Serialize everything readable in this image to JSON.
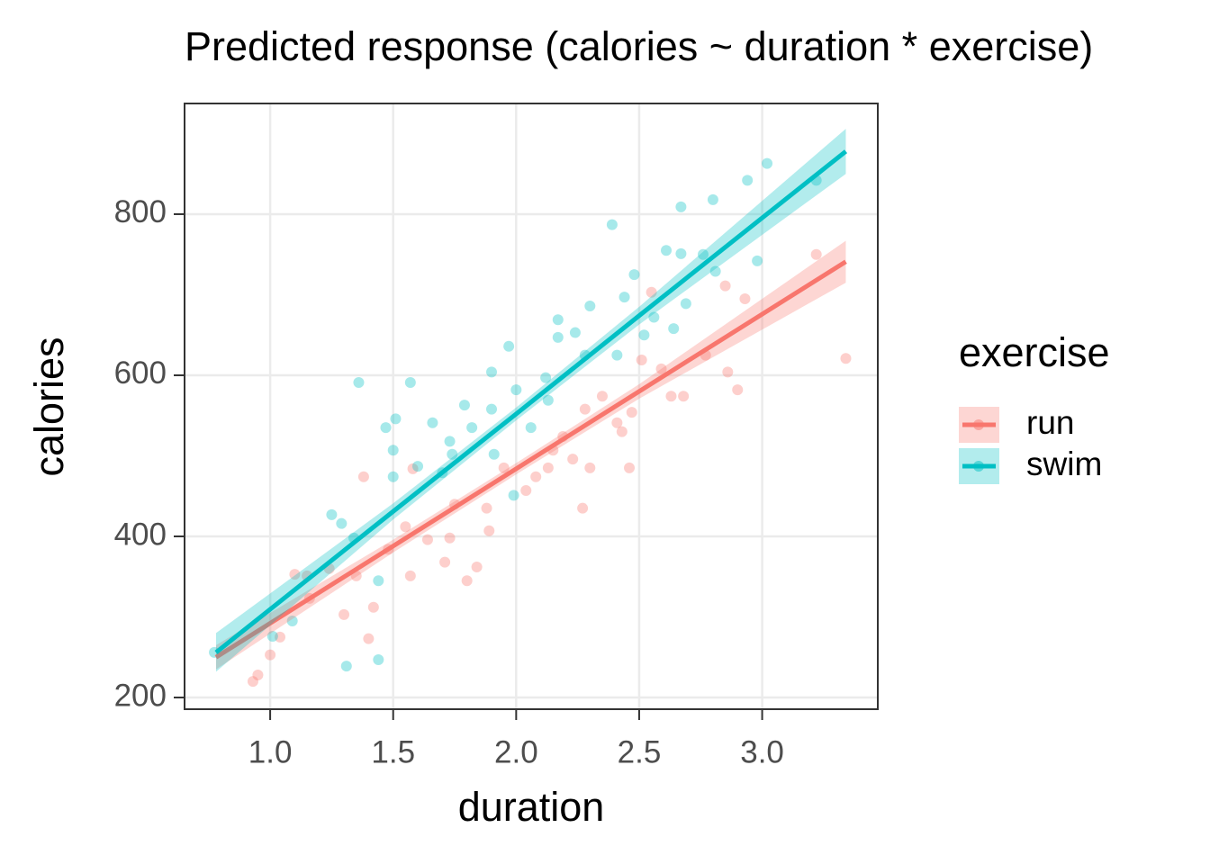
{
  "chart_data": {
    "type": "scatter",
    "title": "Predicted response (calories ~ duration * exercise)",
    "x_label": "duration",
    "y_label": "calories",
    "legend_title": "exercise",
    "legend": "right",
    "grid": true,
    "xlim": [
      0.652,
      3.47
    ],
    "ylim": [
      185.5,
      937.4
    ],
    "xticks": [
      {
        "value": 1,
        "label": "1.0"
      },
      {
        "value": 1.5,
        "label": "1.5"
      },
      {
        "value": 2,
        "label": "2.0"
      },
      {
        "value": 2.5,
        "label": "2.5"
      },
      {
        "value": 3,
        "label": "3.0"
      }
    ],
    "yticks": [
      200,
      400,
      600,
      800
    ],
    "series": [
      {
        "name": "run",
        "color": "#F8766D",
        "x": [
          0.93,
          0.95,
          1.0,
          1.04,
          1.1,
          1.16,
          1.3,
          1.35,
          1.38,
          1.4,
          1.42,
          1.48,
          1.57,
          1.58,
          1.64,
          1.71,
          1.75,
          1.8,
          1.84,
          1.89,
          1.95,
          2.04,
          2.08,
          2.13,
          2.19,
          2.23,
          2.27,
          2.3,
          2.35,
          2.41,
          2.46,
          2.47,
          2.51,
          2.55,
          2.63,
          2.68,
          2.77,
          2.85,
          2.86,
          2.9,
          2.93,
          3.22,
          3.34,
          1.15,
          1.24,
          1.55,
          1.73,
          1.88,
          2.15,
          2.28,
          2.43,
          2.59
        ],
        "values": [
          220,
          228,
          253,
          275,
          353,
          323,
          303,
          351,
          474,
          273,
          312,
          384,
          351,
          484,
          396,
          368,
          440,
          345,
          362,
          407,
          485,
          457,
          474,
          485,
          524,
          496,
          435,
          485,
          574,
          541,
          485,
          554,
          619,
          703,
          574,
          574,
          625,
          711,
          604,
          582,
          695,
          750,
          621,
          351,
          360,
          412,
          398,
          435,
          507,
          558,
          530,
          608
        ],
        "fit_x": [
          0.78,
          1.5,
          2.0,
          2.5,
          3.34
        ],
        "fit": [
          250,
          388,
          484,
          580,
          741
        ],
        "fit_lower": [
          235,
          380,
          477,
          571,
          715
        ],
        "fit_upper": [
          265,
          396,
          491,
          589,
          767
        ]
      },
      {
        "name": "swim",
        "color": "#00BFC4",
        "x": [
          0.773,
          1.01,
          1.09,
          1.25,
          1.31,
          1.36,
          1.44,
          1.44,
          1.47,
          1.5,
          1.5,
          1.57,
          1.6,
          1.66,
          1.7,
          1.73,
          1.79,
          1.82,
          1.9,
          1.9,
          1.97,
          1.99,
          2.0,
          2.12,
          2.17,
          2.17,
          2.24,
          2.3,
          2.39,
          2.44,
          2.48,
          2.52,
          2.61,
          2.67,
          2.67,
          2.69,
          2.76,
          2.8,
          2.81,
          2.94,
          2.98,
          3.02,
          3.22,
          1.29,
          1.34,
          1.51,
          1.74,
          1.91,
          2.06,
          2.13,
          2.28,
          2.41,
          2.56,
          2.64
        ],
        "values": [
          256,
          276,
          295,
          427,
          239,
          591,
          247,
          345,
          535,
          474,
          507,
          591,
          487,
          541,
          479,
          518,
          563,
          535,
          604,
          558,
          636,
          451,
          582,
          597,
          669,
          647,
          653,
          686,
          787,
          697,
          725,
          650,
          755,
          809,
          751,
          689,
          750,
          818,
          729,
          842,
          742,
          863,
          842,
          416,
          398,
          546,
          502,
          502,
          535,
          569,
          625,
          625,
          672,
          658
        ],
        "fit_x": [
          0.78,
          1.5,
          2.0,
          2.5,
          3.34
        ],
        "fit": [
          256,
          431,
          552,
          674,
          878
        ],
        "fit_lower": [
          232,
          421,
          544,
          663,
          850
        ],
        "fit_upper": [
          280,
          441,
          560,
          685,
          906
        ]
      }
    ]
  }
}
